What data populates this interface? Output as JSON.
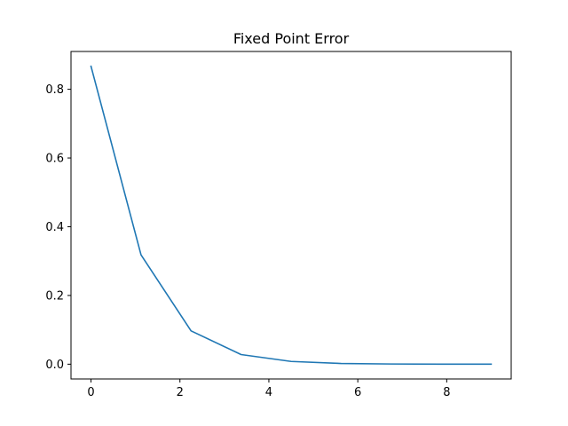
{
  "chart_data": {
    "type": "line",
    "title": "Fixed Point Error",
    "xlabel": "",
    "ylabel": "",
    "xlim": [
      -0.45,
      9.45
    ],
    "ylim": [
      -0.043,
      0.91
    ],
    "x_ticks": [
      0,
      2,
      4,
      6,
      8
    ],
    "x_tick_labels": [
      "0",
      "2",
      "4",
      "6",
      "8"
    ],
    "y_ticks": [
      0.0,
      0.2,
      0.4,
      0.6,
      0.8
    ],
    "y_tick_labels": [
      "0.0",
      "0.2",
      "0.4",
      "0.6",
      "0.8"
    ],
    "grid": false,
    "series": [
      {
        "color": "#1f77b4",
        "x": [
          0,
          1.125,
          2.25,
          3.375,
          4.5,
          5.625,
          6.75,
          7.875,
          9
        ],
        "y": [
          0.867,
          0.318,
          0.097,
          0.028,
          0.008,
          0.002,
          0.0006,
          0.0002,
          5e-05
        ]
      }
    ]
  }
}
